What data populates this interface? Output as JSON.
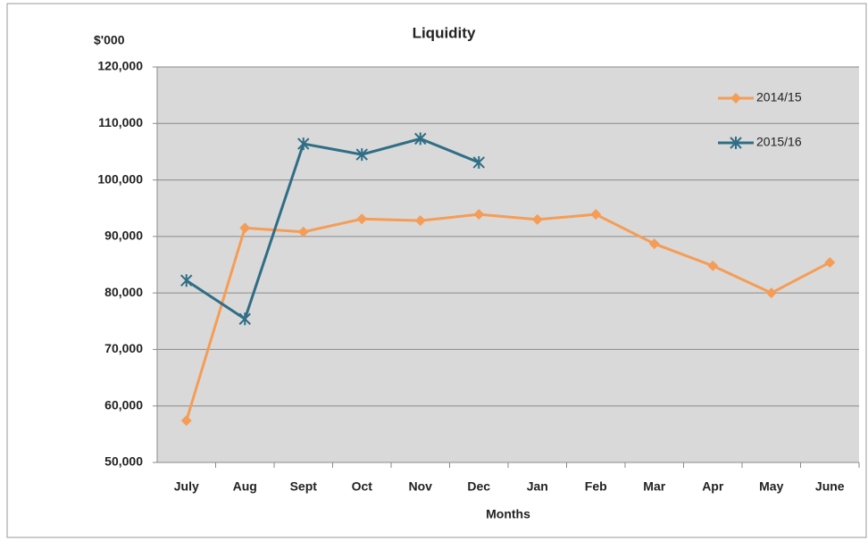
{
  "chart_data": {
    "type": "line",
    "title": "Liquidity",
    "ylabel": "$'000",
    "xlabel": "Months",
    "categories": [
      "July",
      "Aug",
      "Sept",
      "Oct",
      "Nov",
      "Dec",
      "Jan",
      "Feb",
      "Mar",
      "Apr",
      "May",
      "June"
    ],
    "series": [
      {
        "name": "2014/15",
        "color": "#f59d56",
        "marker": "diamond",
        "values": [
          57400,
          91500,
          90800,
          93100,
          92800,
          93900,
          93000,
          93900,
          88700,
          84800,
          80000,
          85400
        ]
      },
      {
        "name": "2015/16",
        "color": "#2f6e85",
        "marker": "star",
        "values": [
          82200,
          75400,
          106400,
          104500,
          107300,
          103100,
          null,
          null,
          null,
          null,
          null,
          null
        ]
      }
    ],
    "ylim": [
      50000,
      120000
    ],
    "yticks": [
      {
        "value": 50000,
        "label": "50,000"
      },
      {
        "value": 60000,
        "label": "60,000"
      },
      {
        "value": 70000,
        "label": "70,000"
      },
      {
        "value": 80000,
        "label": "80,000"
      },
      {
        "value": 90000,
        "label": "90,000"
      },
      {
        "value": 100000,
        "label": "100,000"
      },
      {
        "value": 110000,
        "label": "110,000"
      },
      {
        "value": 120000,
        "label": "120,000"
      }
    ],
    "grid": true,
    "legend": "top-right"
  }
}
